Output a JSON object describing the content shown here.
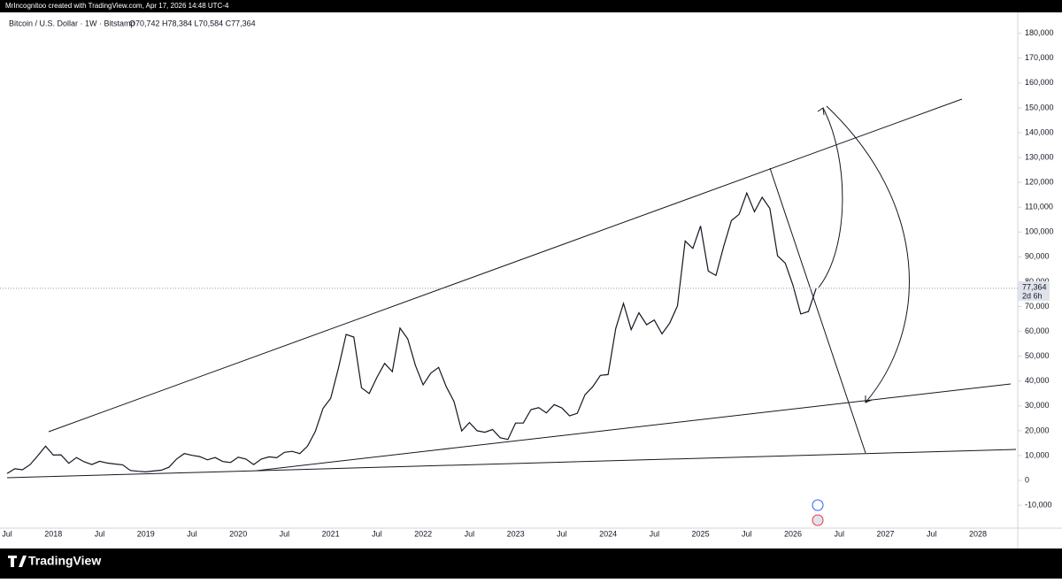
{
  "header": {
    "credit": "MrIncognitoo created with TradingView.com, Apr 17, 2026 14:48 UTC-4"
  },
  "chart_data": {
    "type": "line",
    "title": "Bitcoin / U.S. Dollar · 1W · Bitstamp",
    "ohlc": "O70,742 H78,384 L70,584 C77,364",
    "price_label": "77,364",
    "countdown": "2d 6h",
    "categories": [
      "Jul",
      null,
      null,
      null,
      null,
      null,
      "2018",
      null,
      null,
      null,
      null,
      null,
      "Jul",
      null,
      null,
      null,
      null,
      null,
      "2019",
      null,
      null,
      null,
      null,
      null,
      "Jul",
      null,
      null,
      null,
      null,
      null,
      "2020",
      null,
      null,
      null,
      null,
      null,
      "Jul",
      null,
      null,
      null,
      null,
      null,
      "2021",
      null,
      null,
      null,
      null,
      null,
      "Jul",
      null,
      null,
      null,
      null,
      null,
      "2022",
      null,
      null,
      null,
      null,
      null,
      "Jul",
      null,
      null,
      null,
      null,
      null,
      "2023",
      null,
      null,
      null,
      null,
      null,
      "Jul",
      null,
      null,
      null,
      null,
      null,
      "2024",
      null,
      null,
      null,
      null,
      null,
      "Jul",
      null,
      null,
      null,
      null,
      null,
      "2025",
      null,
      null,
      null,
      null,
      null,
      "Jul",
      null,
      null,
      null,
      null,
      null,
      "2026",
      null,
      null,
      null,
      null,
      null,
      "Jul",
      null,
      null,
      null,
      null,
      null,
      "2027",
      null,
      null,
      null,
      null,
      null,
      "Jul",
      null,
      null,
      null,
      null,
      null,
      "2028",
      null,
      null,
      null,
      null,
      null
    ],
    "series": [
      {
        "name": "BTCUSD",
        "color": "#131722",
        "values": [
          2800,
          4700,
          4300,
          6400,
          10000,
          13800,
          10200,
          10300,
          6900,
          9200,
          7500,
          6400,
          7700,
          7000,
          6600,
          6300,
          4000,
          3700,
          3450,
          3800,
          4100,
          5300,
          8600,
          10800,
          10100,
          9600,
          8300,
          9200,
          7600,
          7200,
          9350,
          8600,
          6400,
          8600,
          9500,
          9150,
          11300,
          11700,
          10800,
          13800,
          19700,
          29000,
          33100,
          45200,
          58800,
          57700,
          37300,
          35000,
          41500,
          47100,
          43800,
          61300,
          57000,
          46300,
          38500,
          43200,
          45500,
          37700,
          31800,
          19900,
          23300,
          20000,
          19400,
          20500,
          17200,
          16500,
          23100,
          23100,
          28500,
          29300,
          27200,
          30500,
          29200,
          26000,
          27000,
          34500,
          37700,
          42300,
          42600,
          61200,
          71300,
          60700,
          67500,
          62700,
          64600,
          59000,
          63300,
          70300,
          96400,
          93400,
          102400,
          84300,
          82500,
          94200,
          104600,
          107100,
          115700,
          108200,
          114000,
          109500,
          90400,
          87500,
          78600,
          67000,
          68000,
          77364,
          null,
          null,
          null,
          null,
          null,
          null,
          null,
          null,
          null,
          null,
          null,
          null,
          null,
          null,
          null,
          null,
          null,
          null,
          null,
          null,
          null,
          null,
          null,
          null,
          null,
          null
        ]
      }
    ],
    "ylim": [
      -18500,
      187000
    ],
    "yticks": [
      {
        "value": -10000,
        "label": "-10,000"
      },
      0,
      {
        "value": 10000,
        "label": "10,000"
      },
      {
        "value": 20000,
        "label": "20,000"
      },
      {
        "value": 30000,
        "label": "30,000"
      },
      {
        "value": 40000,
        "label": "40,000"
      },
      {
        "value": 50000,
        "label": "50,000"
      },
      {
        "value": 60000,
        "label": "60,000"
      },
      {
        "value": 70000,
        "label": "70,000"
      },
      {
        "value": 80000,
        "label": "80,000"
      },
      {
        "value": 90000,
        "label": "90,000"
      },
      {
        "value": 100000,
        "label": "100,000"
      },
      {
        "value": 110000,
        "label": "110,000"
      },
      {
        "value": 120000,
        "label": "120,000"
      },
      {
        "value": 130000,
        "label": "130,000"
      },
      {
        "value": 140000,
        "label": "140,000"
      },
      {
        "value": 150000,
        "label": "150,000"
      },
      {
        "value": 160000,
        "label": "160,000"
      },
      {
        "value": 170000,
        "label": "170,000"
      },
      {
        "value": 180000,
        "label": "180,000"
      }
    ],
    "grid": false
  },
  "footer": {
    "brand": "TradingView"
  }
}
